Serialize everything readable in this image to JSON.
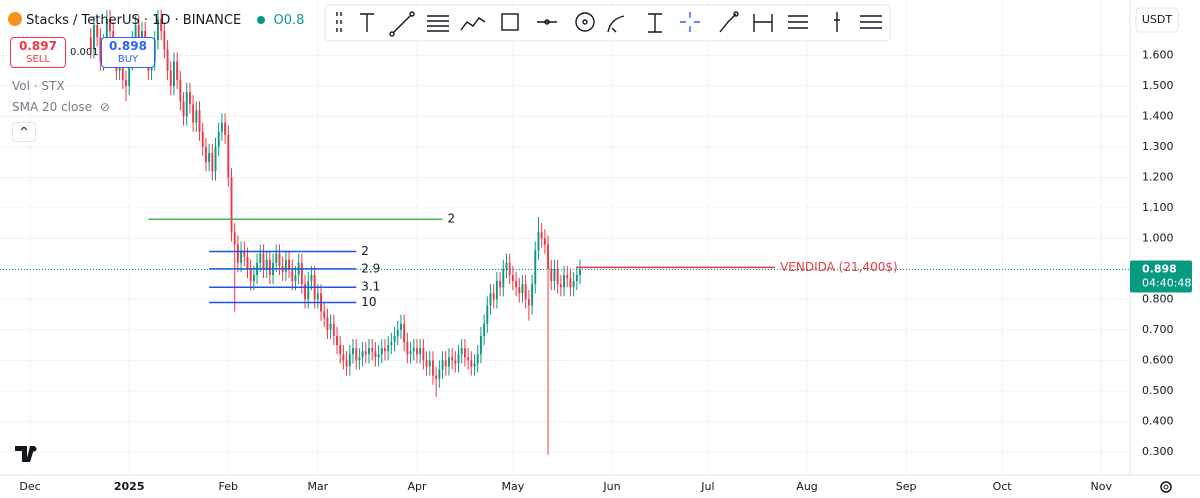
{
  "header": {
    "title": "Stacks / TetherUS · 1D · BINANCE",
    "ohlc_fragment": "O0.8"
  },
  "trade": {
    "sell_price": "0.897",
    "sell_label": "SELL",
    "spread": "0.001",
    "buy_price": "0.898",
    "buy_label": "BUY"
  },
  "indicators": [
    "Vol · STX",
    "SMA 20 close"
  ],
  "currency": "USDT",
  "chart_data": {
    "type": "candlestick",
    "up_color": "#089981",
    "down_color": "#f23645",
    "xlim": [
      -28.4,
      325
    ],
    "xticks": [
      {
        "value": -19,
        "label": "Dec"
      },
      {
        "value": 12,
        "label": "2025"
      },
      {
        "value": 43,
        "label": "Feb"
      },
      {
        "value": 71,
        "label": "Mar"
      },
      {
        "value": 102,
        "label": "Apr"
      },
      {
        "value": 132,
        "label": "May"
      },
      {
        "value": 163,
        "label": "Jun"
      },
      {
        "value": 193,
        "label": "Jul"
      },
      {
        "value": 224,
        "label": "Aug"
      },
      {
        "value": 255,
        "label": "Sep"
      },
      {
        "value": 285,
        "label": "Oct"
      },
      {
        "value": 316,
        "label": "Nov"
      }
    ],
    "ylim": [
      0.224,
      1.782
    ],
    "yticks": [
      {
        "value": 0.3,
        "label": "0.300"
      },
      {
        "value": 0.4,
        "label": "0.400"
      },
      {
        "value": 0.5,
        "label": "0.500"
      },
      {
        "value": 0.6,
        "label": "0.600"
      },
      {
        "value": 0.7,
        "label": "0.700"
      },
      {
        "value": 0.8,
        "label": "0.800"
      },
      {
        "value": 0.9,
        "label": "0.900"
      },
      {
        "value": 1.0,
        "label": "1.000"
      },
      {
        "value": 1.1,
        "label": "1.100"
      },
      {
        "value": 1.2,
        "label": "1.200"
      },
      {
        "value": 1.3,
        "label": "1.300"
      },
      {
        "value": 1.4,
        "label": "1.400"
      },
      {
        "value": 1.5,
        "label": "1.500"
      },
      {
        "value": 1.6,
        "label": "1.600"
      }
    ],
    "open": [
      1.66,
      1.62,
      1.7,
      1.66,
      1.58,
      1.64,
      1.72,
      1.68,
      1.6,
      1.55,
      1.6,
      1.52,
      1.5,
      1.58,
      1.65,
      1.7,
      1.62,
      1.68,
      1.6,
      1.55,
      1.58,
      1.65,
      1.72,
      1.68,
      1.62,
      1.55,
      1.5,
      1.58,
      1.52,
      1.45,
      1.4,
      1.48,
      1.44,
      1.38,
      1.42,
      1.35,
      1.3,
      1.25,
      1.28,
      1.22,
      1.3,
      1.35,
      1.38,
      1.34,
      1.2,
      1.02,
      0.98,
      0.92,
      0.96,
      0.94,
      0.9,
      0.86,
      0.88,
      0.92,
      0.95,
      0.9,
      0.93,
      0.88,
      0.92,
      0.95,
      0.91,
      0.89,
      0.93,
      0.9,
      0.86,
      0.88,
      0.92,
      0.85,
      0.8,
      0.86,
      0.88,
      0.8,
      0.82,
      0.76,
      0.74,
      0.7,
      0.72,
      0.68,
      0.65,
      0.62,
      0.6,
      0.58,
      0.62,
      0.64,
      0.6,
      0.61,
      0.63,
      0.62,
      0.64,
      0.63,
      0.61,
      0.62,
      0.64,
      0.63,
      0.65,
      0.66,
      0.68,
      0.7,
      0.72,
      0.66,
      0.62,
      0.63,
      0.64,
      0.62,
      0.64,
      0.6,
      0.58,
      0.6,
      0.55,
      0.54,
      0.57,
      0.6,
      0.58,
      0.61,
      0.6,
      0.59,
      0.62,
      0.64,
      0.61,
      0.6,
      0.58,
      0.59,
      0.62,
      0.68,
      0.72,
      0.78,
      0.82,
      0.8,
      0.86,
      0.84,
      0.9,
      0.92,
      0.88,
      0.86,
      0.84,
      0.82,
      0.85,
      0.8,
      0.78,
      0.85,
      0.96,
      1.02,
      1.0,
      0.98,
      0.9,
      0.86,
      0.9,
      0.85,
      0.84,
      0.88,
      0.87,
      0.84,
      0.86,
      0.88
    ],
    "high": [
      1.69,
      1.73,
      1.73,
      1.69,
      1.67,
      1.75,
      1.75,
      1.71,
      1.63,
      1.63,
      1.63,
      1.55,
      1.61,
      1.68,
      1.73,
      1.73,
      1.71,
      1.71,
      1.63,
      1.61,
      1.68,
      1.75,
      1.75,
      1.71,
      1.65,
      1.58,
      1.61,
      1.61,
      1.55,
      1.48,
      1.51,
      1.51,
      1.47,
      1.45,
      1.45,
      1.38,
      1.33,
      1.31,
      1.31,
      1.33,
      1.38,
      1.41,
      1.41,
      1.37,
      1.23,
      1.05,
      1.01,
      0.99,
      0.99,
      0.97,
      0.93,
      0.91,
      0.95,
      0.98,
      0.98,
      0.96,
      0.96,
      0.95,
      0.98,
      0.98,
      0.94,
      0.96,
      0.96,
      0.93,
      0.91,
      0.95,
      0.95,
      0.88,
      0.89,
      0.91,
      0.91,
      0.85,
      0.85,
      0.79,
      0.77,
      0.75,
      0.75,
      0.71,
      0.68,
      0.65,
      0.63,
      0.65,
      0.67,
      0.67,
      0.64,
      0.66,
      0.66,
      0.67,
      0.67,
      0.66,
      0.65,
      0.67,
      0.67,
      0.68,
      0.69,
      0.71,
      0.73,
      0.75,
      0.75,
      0.69,
      0.66,
      0.67,
      0.67,
      0.67,
      0.67,
      0.63,
      0.63,
      0.63,
      0.58,
      0.6,
      0.63,
      0.63,
      0.64,
      0.64,
      0.63,
      0.65,
      0.67,
      0.67,
      0.64,
      0.63,
      0.62,
      0.65,
      0.71,
      0.75,
      0.81,
      0.85,
      0.85,
      0.89,
      0.89,
      0.93,
      0.95,
      0.95,
      0.91,
      0.89,
      0.87,
      0.88,
      0.88,
      0.83,
      0.88,
      0.99,
      1.07,
      1.05,
      1.03,
      1.01,
      0.93,
      0.93,
      0.93,
      0.88,
      0.91,
      0.91,
      0.9,
      0.89,
      0.91,
      0.93
    ],
    "low": [
      1.59,
      1.59,
      1.63,
      1.55,
      1.55,
      1.61,
      1.65,
      1.57,
      1.52,
      1.52,
      1.49,
      1.45,
      1.47,
      1.55,
      1.62,
      1.59,
      1.59,
      1.57,
      1.52,
      1.52,
      1.55,
      1.62,
      1.65,
      1.59,
      1.52,
      1.47,
      1.47,
      1.49,
      1.42,
      1.37,
      1.37,
      1.41,
      1.35,
      1.35,
      1.32,
      1.27,
      1.22,
      1.22,
      1.19,
      1.19,
      1.27,
      1.32,
      1.31,
      1.17,
      0.99,
      0.76,
      0.89,
      0.89,
      0.91,
      0.87,
      0.83,
      0.83,
      0.85,
      0.89,
      0.87,
      0.87,
      0.85,
      0.85,
      0.89,
      0.88,
      0.86,
      0.86,
      0.87,
      0.83,
      0.83,
      0.85,
      0.82,
      0.77,
      0.77,
      0.83,
      0.77,
      0.77,
      0.73,
      0.71,
      0.67,
      0.67,
      0.65,
      0.62,
      0.59,
      0.57,
      0.55,
      0.55,
      0.59,
      0.57,
      0.57,
      0.58,
      0.59,
      0.59,
      0.6,
      0.58,
      0.58,
      0.59,
      0.6,
      0.6,
      0.62,
      0.63,
      0.65,
      0.67,
      0.63,
      0.59,
      0.59,
      0.6,
      0.59,
      0.59,
      0.57,
      0.55,
      0.55,
      0.52,
      0.48,
      0.51,
      0.54,
      0.55,
      0.55,
      0.57,
      0.56,
      0.56,
      0.59,
      0.58,
      0.57,
      0.55,
      0.55,
      0.56,
      0.59,
      0.65,
      0.69,
      0.75,
      0.77,
      0.77,
      0.81,
      0.81,
      0.87,
      0.85,
      0.83,
      0.81,
      0.79,
      0.79,
      0.77,
      0.73,
      0.75,
      0.82,
      0.93,
      0.97,
      0.95,
      0.29,
      0.83,
      0.83,
      0.82,
      0.81,
      0.81,
      0.84,
      0.81,
      0.81,
      0.83,
      0.85
    ],
    "close": [
      1.62,
      1.7,
      1.66,
      1.58,
      1.64,
      1.72,
      1.68,
      1.6,
      1.55,
      1.6,
      1.52,
      1.5,
      1.58,
      1.65,
      1.7,
      1.62,
      1.68,
      1.6,
      1.55,
      1.58,
      1.65,
      1.72,
      1.68,
      1.62,
      1.55,
      1.5,
      1.58,
      1.52,
      1.45,
      1.4,
      1.48,
      1.44,
      1.38,
      1.42,
      1.35,
      1.3,
      1.25,
      1.28,
      1.22,
      1.3,
      1.35,
      1.38,
      1.34,
      1.2,
      1.02,
      0.98,
      0.92,
      0.96,
      0.94,
      0.9,
      0.86,
      0.88,
      0.92,
      0.95,
      0.9,
      0.93,
      0.88,
      0.92,
      0.95,
      0.91,
      0.89,
      0.93,
      0.9,
      0.86,
      0.88,
      0.92,
      0.85,
      0.8,
      0.86,
      0.88,
      0.8,
      0.82,
      0.76,
      0.74,
      0.7,
      0.72,
      0.68,
      0.65,
      0.62,
      0.6,
      0.58,
      0.62,
      0.64,
      0.6,
      0.61,
      0.63,
      0.62,
      0.64,
      0.63,
      0.61,
      0.62,
      0.64,
      0.63,
      0.65,
      0.66,
      0.68,
      0.7,
      0.72,
      0.66,
      0.62,
      0.63,
      0.64,
      0.62,
      0.64,
      0.6,
      0.58,
      0.6,
      0.55,
      0.54,
      0.57,
      0.6,
      0.58,
      0.61,
      0.6,
      0.59,
      0.62,
      0.64,
      0.61,
      0.6,
      0.58,
      0.59,
      0.62,
      0.68,
      0.72,
      0.78,
      0.82,
      0.8,
      0.86,
      0.84,
      0.9,
      0.92,
      0.88,
      0.86,
      0.84,
      0.82,
      0.85,
      0.8,
      0.78,
      0.85,
      0.96,
      1.02,
      1.0,
      0.98,
      0.9,
      0.86,
      0.9,
      0.85,
      0.84,
      0.88,
      0.87,
      0.84,
      0.86,
      0.88,
      0.898
    ],
    "drawings": [
      {
        "label": "2",
        "value": 1.063,
        "start": 18,
        "end": 110,
        "color": "#4caf50"
      },
      {
        "label": "2",
        "value": 0.957,
        "start": 37,
        "end": 83,
        "color": "#1e53e5"
      },
      {
        "label": "2.9",
        "value": 0.9,
        "start": 37,
        "end": 83,
        "color": "#1e53e5"
      },
      {
        "label": "3.1",
        "value": 0.84,
        "start": 37,
        "end": 83,
        "color": "#1e53e5"
      },
      {
        "label": "10",
        "value": 0.79,
        "start": 37,
        "end": 83,
        "color": "#1e53e5"
      },
      {
        "label": "VENDIDA (21,400$)",
        "value": 0.905,
        "start": 152,
        "end": 214,
        "color": "#f23645"
      }
    ],
    "last_price": {
      "value": 0.898,
      "label": "0.898",
      "countdown": "04:40:48",
      "color": "#089981"
    }
  }
}
